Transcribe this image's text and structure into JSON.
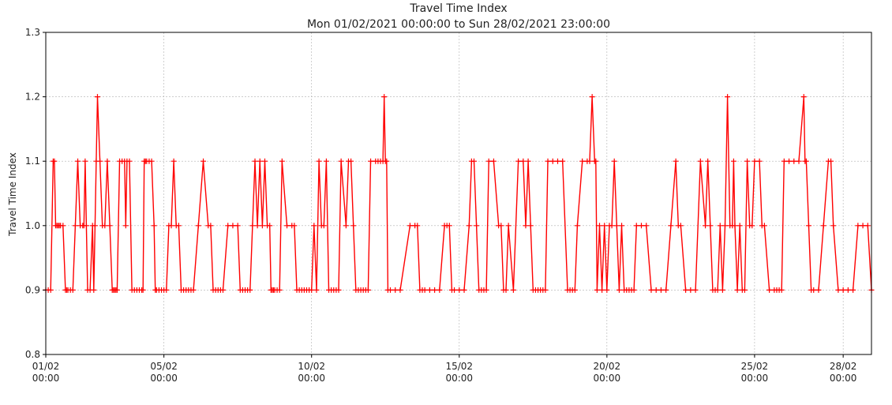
{
  "chart_data": {
    "type": "line",
    "title": "Travel Time Index",
    "subtitle": "Mon 01/02/2021 00:00:00 to Sun 28/02/2021 23:00:00",
    "ylabel": "Travel Time Index",
    "xlabel": "",
    "xlim": [
      "2021-02-01T00:00",
      "2021-02-28T23:00"
    ],
    "ylim": [
      0.8,
      1.3
    ],
    "yticks": [
      {
        "value": 0.8,
        "label": "0.8"
      },
      {
        "value": 0.9,
        "label": "0.9"
      },
      {
        "value": 1.0,
        "label": "1.0"
      },
      {
        "value": 1.1,
        "label": "1.1"
      },
      {
        "value": 1.2,
        "label": "1.2"
      },
      {
        "value": 1.3,
        "label": "1.3"
      }
    ],
    "xticks": [
      {
        "value": "2021-02-01T00:00",
        "date": "01/02",
        "time": "00:00"
      },
      {
        "value": "2021-02-05T00:00",
        "date": "05/02",
        "time": "00:00"
      },
      {
        "value": "2021-02-10T00:00",
        "date": "10/02",
        "time": "00:00"
      },
      {
        "value": "2021-02-15T00:00",
        "date": "15/02",
        "time": "00:00"
      },
      {
        "value": "2021-02-20T00:00",
        "date": "20/02",
        "time": "00:00"
      },
      {
        "value": "2021-02-25T00:00",
        "date": "25/02",
        "time": "00:00"
      },
      {
        "value": "2021-02-28T00:00",
        "date": "28/02",
        "time": "00:00"
      }
    ],
    "grid": true,
    "color": "#ff0000",
    "marker": "plus",
    "series": [
      {
        "x": [
          "2021-02-01T00:00",
          "2021-02-01T02:00",
          "2021-02-01T04:00",
          "2021-02-01T06:00",
          "2021-02-01T07:00",
          "2021-02-01T08:00",
          "2021-02-01T09:00",
          "2021-02-01T10:00",
          "2021-02-01T11:00",
          "2021-02-01T12:00",
          "2021-02-01T14:00",
          "2021-02-01T16:00",
          "2021-02-01T17:00",
          "2021-02-01T18:00",
          "2021-02-01T20:00",
          "2021-02-01T22:00",
          "2021-02-02T00:00",
          "2021-02-02T02:00",
          "2021-02-02T04:00",
          "2021-02-02T06:00",
          "2021-02-02T07:00",
          "2021-02-02T08:00",
          "2021-02-02T09:00",
          "2021-02-02T10:00",
          "2021-02-02T12:00",
          "2021-02-02T14:00",
          "2021-02-02T15:00",
          "2021-02-02T16:00",
          "2021-02-02T17:00",
          "2021-02-02T18:00",
          "2021-02-02T20:00",
          "2021-02-02T22:00",
          "2021-02-03T00:00",
          "2021-02-03T02:00",
          "2021-02-03T04:00",
          "2021-02-03T06:00",
          "2021-02-03T07:00",
          "2021-02-03T08:00",
          "2021-02-03T09:00",
          "2021-02-03T10:00",
          "2021-02-03T12:00",
          "2021-02-03T14:00",
          "2021-02-03T16:00",
          "2021-02-03T17:00",
          "2021-02-03T18:00",
          "2021-02-03T20:00",
          "2021-02-03T22:00",
          "2021-02-04T00:00",
          "2021-02-04T02:00",
          "2021-02-04T04:00",
          "2021-02-04T06:00",
          "2021-02-04T07:00",
          "2021-02-04T08:00",
          "2021-02-04T09:00",
          "2021-02-04T10:00",
          "2021-02-04T12:00",
          "2021-02-04T14:00",
          "2021-02-04T16:00",
          "2021-02-04T17:00",
          "2021-02-04T18:00",
          "2021-02-04T20:00",
          "2021-02-04T22:00",
          "2021-02-05T00:00",
          "2021-02-05T02:00",
          "2021-02-05T04:00",
          "2021-02-05T06:00",
          "2021-02-05T08:00",
          "2021-02-05T10:00",
          "2021-02-05T12:00",
          "2021-02-05T14:00",
          "2021-02-05T16:00",
          "2021-02-05T18:00",
          "2021-02-05T20:00",
          "2021-02-05T22:00",
          "2021-02-06T00:00",
          "2021-02-06T04:00",
          "2021-02-06T08:00",
          "2021-02-06T12:00",
          "2021-02-06T14:00",
          "2021-02-06T16:00",
          "2021-02-06T18:00",
          "2021-02-06T20:00",
          "2021-02-06T22:00",
          "2021-02-07T00:00",
          "2021-02-07T04:00",
          "2021-02-07T08:00",
          "2021-02-07T12:00",
          "2021-02-07T14:00",
          "2021-02-07T16:00",
          "2021-02-07T18:00",
          "2021-02-07T20:00",
          "2021-02-07T22:00",
          "2021-02-08T00:00",
          "2021-02-08T02:00",
          "2021-02-08T04:00",
          "2021-02-08T06:00",
          "2021-02-08T08:00",
          "2021-02-08T10:00",
          "2021-02-08T12:00",
          "2021-02-08T14:00",
          "2021-02-08T15:00",
          "2021-02-08T16:00",
          "2021-02-08T17:00",
          "2021-02-08T18:00",
          "2021-02-08T20:00",
          "2021-02-08T22:00",
          "2021-02-09T00:00",
          "2021-02-09T04:00",
          "2021-02-09T08:00",
          "2021-02-09T10:00",
          "2021-02-09T12:00",
          "2021-02-09T14:00",
          "2021-02-09T16:00",
          "2021-02-09T18:00",
          "2021-02-09T20:00",
          "2021-02-09T22:00",
          "2021-02-10T00:00",
          "2021-02-10T02:00",
          "2021-02-10T04:00",
          "2021-02-10T06:00",
          "2021-02-10T08:00",
          "2021-02-10T10:00",
          "2021-02-10T12:00",
          "2021-02-10T14:00",
          "2021-02-10T16:00",
          "2021-02-10T18:00",
          "2021-02-10T20:00",
          "2021-02-10T22:00",
          "2021-02-11T00:00",
          "2021-02-11T04:00",
          "2021-02-11T06:00",
          "2021-02-11T08:00",
          "2021-02-11T10:00",
          "2021-02-11T12:00",
          "2021-02-11T14:00",
          "2021-02-11T16:00",
          "2021-02-11T18:00",
          "2021-02-11T20:00",
          "2021-02-11T22:00",
          "2021-02-12T00:00",
          "2021-02-12T04:00",
          "2021-02-12T06:00",
          "2021-02-12T08:00",
          "2021-02-12T10:00",
          "2021-02-12T11:00",
          "2021-02-12T12:00",
          "2021-02-12T13:00",
          "2021-02-12T14:00",
          "2021-02-12T16:00",
          "2021-02-12T20:00",
          "2021-02-13T00:00",
          "2021-02-13T08:00",
          "2021-02-13T12:00",
          "2021-02-13T14:00",
          "2021-02-13T16:00",
          "2021-02-13T18:00",
          "2021-02-13T20:00",
          "2021-02-14T00:00",
          "2021-02-14T04:00",
          "2021-02-14T08:00",
          "2021-02-14T12:00",
          "2021-02-14T14:00",
          "2021-02-14T16:00",
          "2021-02-14T18:00",
          "2021-02-14T20:00",
          "2021-02-15T00:00",
          "2021-02-15T04:00",
          "2021-02-15T08:00",
          "2021-02-15T10:00",
          "2021-02-15T12:00",
          "2021-02-15T14:00",
          "2021-02-15T16:00",
          "2021-02-15T18:00",
          "2021-02-15T20:00",
          "2021-02-15T22:00",
          "2021-02-16T00:00",
          "2021-02-16T04:00",
          "2021-02-16T08:00",
          "2021-02-16T10:00",
          "2021-02-16T12:00",
          "2021-02-16T14:00",
          "2021-02-16T16:00",
          "2021-02-16T20:00",
          "2021-02-17T00:00",
          "2021-02-17T04:00",
          "2021-02-17T06:00",
          "2021-02-17T08:00",
          "2021-02-17T10:00",
          "2021-02-17T12:00",
          "2021-02-17T14:00",
          "2021-02-17T16:00",
          "2021-02-17T18:00",
          "2021-02-17T20:00",
          "2021-02-17T22:00",
          "2021-02-18T00:00",
          "2021-02-18T04:00",
          "2021-02-18T08:00",
          "2021-02-18T12:00",
          "2021-02-18T16:00",
          "2021-02-18T18:00",
          "2021-02-18T20:00",
          "2021-02-18T22:00",
          "2021-02-19T00:00",
          "2021-02-19T04:00",
          "2021-02-19T08:00",
          "2021-02-19T10:00",
          "2021-02-19T12:00",
          "2021-02-19T14:00",
          "2021-02-19T15:00",
          "2021-02-19T16:00",
          "2021-02-19T18:00",
          "2021-02-19T20:00",
          "2021-02-19T22:00",
          "2021-02-20T00:00",
          "2021-02-20T02:00",
          "2021-02-20T04:00",
          "2021-02-20T06:00",
          "2021-02-20T08:00",
          "2021-02-20T10:00",
          "2021-02-20T12:00",
          "2021-02-20T14:00",
          "2021-02-20T16:00",
          "2021-02-20T18:00",
          "2021-02-20T20:00",
          "2021-02-20T22:00",
          "2021-02-21T00:00",
          "2021-02-21T04:00",
          "2021-02-21T08:00",
          "2021-02-21T12:00",
          "2021-02-21T16:00",
          "2021-02-21T20:00",
          "2021-02-22T00:00",
          "2021-02-22T04:00",
          "2021-02-22T08:00",
          "2021-02-22T10:00",
          "2021-02-22T12:00",
          "2021-02-22T16:00",
          "2021-02-22T20:00",
          "2021-02-23T00:00",
          "2021-02-23T04:00",
          "2021-02-23T08:00",
          "2021-02-23T10:00",
          "2021-02-23T12:00",
          "2021-02-23T14:00",
          "2021-02-23T16:00",
          "2021-02-23T18:00",
          "2021-02-23T20:00",
          "2021-02-23T22:00",
          "2021-02-24T00:00",
          "2021-02-24T02:00",
          "2021-02-24T04:00",
          "2021-02-24T06:00",
          "2021-02-24T07:00",
          "2021-02-24T08:00",
          "2021-02-24T10:00",
          "2021-02-24T12:00",
          "2021-02-24T14:00",
          "2021-02-24T16:00",
          "2021-02-24T18:00",
          "2021-02-24T20:00",
          "2021-02-24T22:00",
          "2021-02-25T00:00",
          "2021-02-25T04:00",
          "2021-02-25T06:00",
          "2021-02-25T08:00",
          "2021-02-25T12:00",
          "2021-02-25T16:00",
          "2021-02-25T18:00",
          "2021-02-25T20:00",
          "2021-02-25T22:00",
          "2021-02-26T00:00",
          "2021-02-26T04:00",
          "2021-02-26T08:00",
          "2021-02-26T12:00",
          "2021-02-26T16:00",
          "2021-02-26T17:00",
          "2021-02-26T18:00",
          "2021-02-26T20:00",
          "2021-02-26T22:00",
          "2021-02-27T00:00",
          "2021-02-27T04:00",
          "2021-02-27T08:00",
          "2021-02-27T12:00",
          "2021-02-27T14:00",
          "2021-02-27T16:00",
          "2021-02-27T20:00",
          "2021-02-28T00:00",
          "2021-02-28T04:00",
          "2021-02-28T08:00",
          "2021-02-28T12:00",
          "2021-02-28T16:00",
          "2021-02-28T20:00",
          "2021-02-28T23:00"
        ],
        "y": [
          0.9,
          0.9,
          0.9,
          1.1,
          1.1,
          1.0,
          1.0,
          1.0,
          1.0,
          1.0,
          1.0,
          0.9,
          0.9,
          0.9,
          0.9,
          0.9,
          1.0,
          1.1,
          1.0,
          1.0,
          1.0,
          1.1,
          1.0,
          0.9,
          0.9,
          1.0,
          0.9,
          1.0,
          1.1,
          1.2,
          1.1,
          1.0,
          1.0,
          1.1,
          1.0,
          0.9,
          0.9,
          0.9,
          0.9,
          0.9,
          1.1,
          1.1,
          1.1,
          1.0,
          1.1,
          1.1,
          0.9,
          0.9,
          0.9,
          0.9,
          0.9,
          0.9,
          1.1,
          1.1,
          1.1,
          1.1,
          1.1,
          1.0,
          0.9,
          0.9,
          0.9,
          0.9,
          0.9,
          0.9,
          1.0,
          1.0,
          1.1,
          1.0,
          1.0,
          0.9,
          0.9,
          0.9,
          0.9,
          0.9,
          0.9,
          1.0,
          1.1,
          1.0,
          1.0,
          0.9,
          0.9,
          0.9,
          0.9,
          0.9,
          1.0,
          1.0,
          1.0,
          0.9,
          0.9,
          0.9,
          0.9,
          0.9,
          1.0,
          1.1,
          1.0,
          1.1,
          1.0,
          1.1,
          1.0,
          1.0,
          0.9,
          0.9,
          0.9,
          0.9,
          0.9,
          0.9,
          1.1,
          1.0,
          1.0,
          1.0,
          0.9,
          0.9,
          0.9,
          0.9,
          0.9,
          0.9,
          0.9,
          1.0,
          0.9,
          1.1,
          1.0,
          1.0,
          1.1,
          0.9,
          0.9,
          0.9,
          0.9,
          0.9,
          1.1,
          1.0,
          1.1,
          1.1,
          1.0,
          0.9,
          0.9,
          0.9,
          0.9,
          0.9,
          0.9,
          1.1,
          1.1,
          1.1,
          1.1,
          1.1,
          1.2,
          1.1,
          1.1,
          0.9,
          0.9,
          0.9,
          0.9,
          1.0,
          1.0,
          1.0,
          0.9,
          0.9,
          0.9,
          0.9,
          0.9,
          0.9,
          1.0,
          1.0,
          1.0,
          0.9,
          0.9,
          0.9,
          0.9,
          1.0,
          1.1,
          1.1,
          1.0,
          0.9,
          0.9,
          0.9,
          0.9,
          1.1,
          1.1,
          1.0,
          1.0,
          0.9,
          0.9,
          1.0,
          0.9,
          1.1,
          1.1,
          1.0,
          1.1,
          1.0,
          0.9,
          0.9,
          0.9,
          0.9,
          0.9,
          0.9,
          1.1,
          1.1,
          1.1,
          1.1,
          0.9,
          0.9,
          0.9,
          0.9,
          1.0,
          1.1,
          1.1,
          1.1,
          1.2,
          1.1,
          1.1,
          0.9,
          1.0,
          0.9,
          1.0,
          0.9,
          1.0,
          1.0,
          1.1,
          1.0,
          0.9,
          1.0,
          0.9,
          0.9,
          0.9,
          0.9,
          0.9,
          1.0,
          1.0,
          1.0,
          0.9,
          0.9,
          0.9,
          0.9,
          1.0,
          1.1,
          1.0,
          1.0,
          0.9,
          0.9,
          0.9,
          1.1,
          1.0,
          1.1,
          1.0,
          0.9,
          0.9,
          0.9,
          1.0,
          0.9,
          1.0,
          1.2,
          1.0,
          1.0,
          1.1,
          1.0,
          0.9,
          1.0,
          0.9,
          0.9,
          1.1,
          1.0,
          1.0,
          1.1,
          1.1,
          1.0,
          1.0,
          0.9,
          0.9,
          0.9,
          0.9,
          0.9,
          1.1,
          1.1,
          1.1,
          1.1,
          1.2,
          1.1,
          1.1,
          1.0,
          0.9,
          0.9,
          0.9,
          1.0,
          1.1,
          1.1,
          1.0,
          0.9,
          0.9,
          0.9,
          0.9,
          1.0,
          1.0,
          1.0,
          0.9
        ]
      }
    ]
  }
}
